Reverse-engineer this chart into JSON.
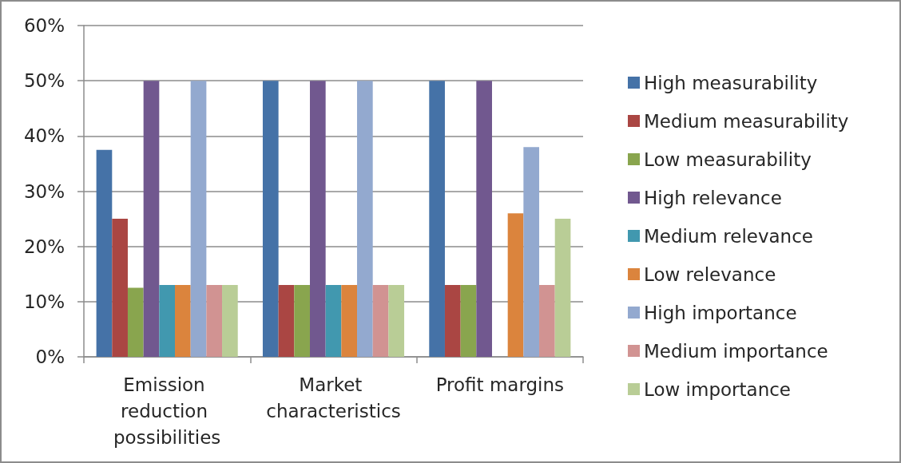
{
  "chart_data": {
    "type": "bar",
    "categories": [
      "Emission reduction possibilities",
      "Market characteristics",
      "Profit margins"
    ],
    "series": [
      {
        "name": "High measurability",
        "color": "#4572a7",
        "values": [
          37.5,
          50,
          50
        ]
      },
      {
        "name": "Medium measurability",
        "color": "#aa4643",
        "values": [
          25,
          13,
          13
        ]
      },
      {
        "name": "Low measurability",
        "color": "#89a54e",
        "values": [
          12.5,
          13,
          13
        ]
      },
      {
        "name": "High relevance",
        "color": "#71588f",
        "values": [
          50,
          50,
          50
        ]
      },
      {
        "name": "Medium relevance",
        "color": "#4198af",
        "values": [
          13,
          13,
          null
        ]
      },
      {
        "name": "Low relevance",
        "color": "#db843d",
        "values": [
          13,
          13,
          26
        ]
      },
      {
        "name": "High importance",
        "color": "#93a9cf",
        "values": [
          50,
          50,
          38
        ]
      },
      {
        "name": "Medium importance",
        "color": "#d19392",
        "values": [
          13,
          13,
          13
        ]
      },
      {
        "name": "Low importance",
        "color": "#b9cd96",
        "values": [
          13,
          13,
          25
        ]
      }
    ],
    "ylim": [
      0,
      60
    ],
    "yticks": [
      {
        "value": 0,
        "label": "0%"
      },
      {
        "value": 10,
        "label": "10%"
      },
      {
        "value": 20,
        "label": "20%"
      },
      {
        "value": 30,
        "label": "30%"
      },
      {
        "value": 40,
        "label": "40%"
      },
      {
        "value": 50,
        "label": "50%"
      },
      {
        "value": 60,
        "label": "60%"
      }
    ],
    "grid": "y",
    "legend": "right"
  }
}
